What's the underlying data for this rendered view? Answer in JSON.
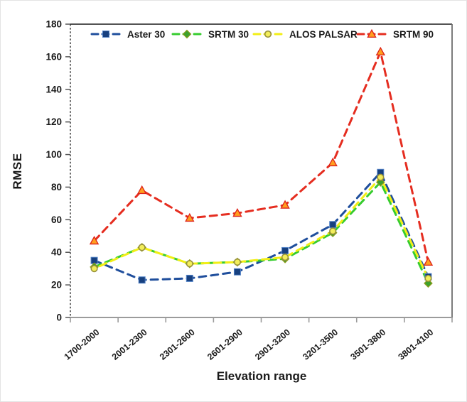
{
  "chart_data": {
    "type": "line",
    "title": "",
    "xlabel": "Elevation range",
    "ylabel": "RMSE",
    "ylim": [
      0,
      180
    ],
    "yticks": [
      0,
      20,
      40,
      60,
      80,
      100,
      120,
      140,
      160,
      180
    ],
    "grid": false,
    "legend_position": "top-inside",
    "line_style": "dashed",
    "categories": [
      "1700-2000",
      "2001-2300",
      "2301-2600",
      "2601-2900",
      "2901-3200",
      "3201-3500",
      "3501-3800",
      "3801-4100"
    ],
    "series": [
      {
        "name": "Aster 30",
        "marker": "square",
        "line_color": "#1f4e9c",
        "marker_fill": "#17407f",
        "marker_stroke": "#5585c9",
        "values": [
          35,
          23,
          24,
          28,
          41,
          57,
          89,
          25
        ]
      },
      {
        "name": "SRTM 30",
        "marker": "diamond",
        "line_color": "#36cc2e",
        "marker_fill": "#3da12c",
        "marker_stroke": "#8f9b1d",
        "values": [
          31,
          43,
          33,
          34,
          36,
          52,
          83,
          21
        ]
      },
      {
        "name": "ALOS PALSAR",
        "marker": "circle",
        "line_color": "#f2ee15",
        "marker_fill": "#f3ee5b",
        "marker_stroke": "#97913a",
        "values": [
          30,
          43,
          33,
          34,
          37,
          53,
          86,
          24
        ]
      },
      {
        "name": "SRTM 90",
        "marker": "triangle",
        "line_color": "#e52d20",
        "marker_fill": "#ff9f1f",
        "marker_stroke": "#dd2119",
        "values": [
          47,
          78,
          61,
          64,
          69,
          95,
          163,
          34
        ]
      }
    ]
  },
  "style": {
    "axis_text_color": "#1a1a1a",
    "top_frame_color": "#3c3c3c",
    "right_frame_color": "#6e6e6e",
    "bottom_frame_color": "#9b9b9b",
    "left_axis_color": "#2b2b2b"
  }
}
